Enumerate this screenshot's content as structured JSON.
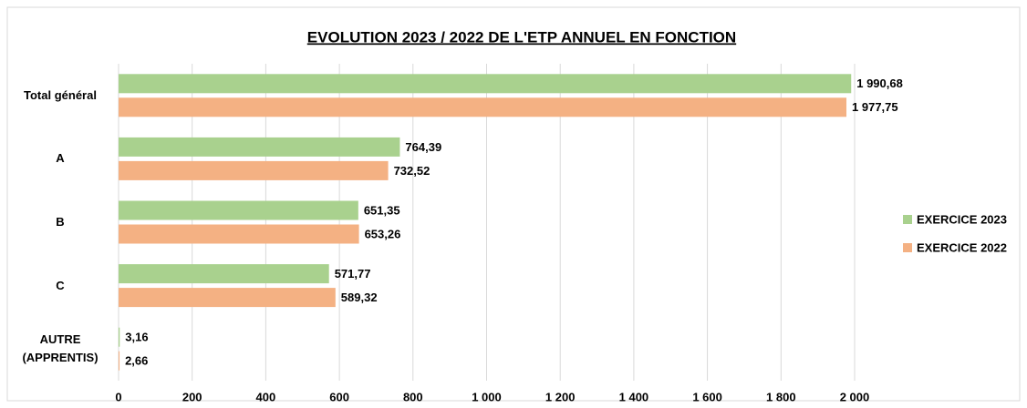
{
  "chart_data": {
    "type": "barh",
    "title": "EVOLUTION 2023 / 2022 DE L'ETP ANNUEL EN FONCTION",
    "categories": [
      "Total général",
      "A",
      "B",
      "C",
      "AUTRE\n(APPRENTIS)"
    ],
    "series": [
      {
        "name": "EXERCICE 2023",
        "color": "#a9d18e",
        "values": [
          1990.68,
          764.39,
          651.35,
          571.77,
          3.16
        ],
        "value_labels": [
          "1 990,68",
          "764,39",
          "651,35",
          "571,77",
          "3,16"
        ]
      },
      {
        "name": "EXERCICE 2022",
        "color": "#f4b183",
        "values": [
          1977.75,
          732.52,
          653.26,
          589.32,
          2.66
        ],
        "value_labels": [
          "1 977,75",
          "732,52",
          "653,26",
          "589,32",
          "2,66"
        ]
      }
    ],
    "xlim": [
      0,
      2000
    ],
    "xticks": [
      0,
      200,
      400,
      600,
      800,
      {
        "value": 1000,
        "label": "1 000"
      },
      {
        "value": 1200,
        "label": "1 200"
      },
      {
        "value": 1400,
        "label": "1 400"
      },
      {
        "value": 1600,
        "label": "1 600"
      },
      {
        "value": 1800,
        "label": "1 800"
      },
      {
        "value": 2000,
        "label": "2 000"
      }
    ],
    "grid": true,
    "legend": "right"
  }
}
